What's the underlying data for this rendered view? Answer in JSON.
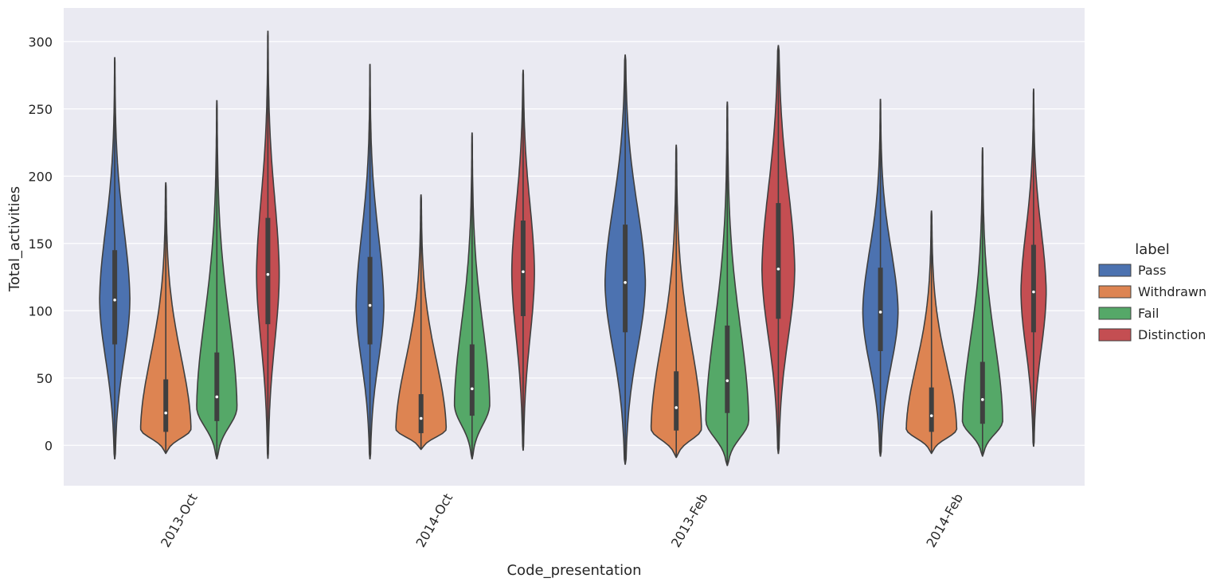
{
  "chart_data": {
    "type": "violin",
    "xlabel": "Code_presentation",
    "ylabel": "Total_activities",
    "ylim": [
      -30,
      325
    ],
    "yticks": [
      0,
      50,
      100,
      150,
      200,
      250,
      300
    ],
    "categories": [
      "2013-Oct",
      "2014-Oct",
      "2013-Feb",
      "2014-Feb"
    ],
    "legend": {
      "title": "label",
      "position": "right"
    },
    "colors": {
      "background": "#eaeaf2",
      "grid": "#ffffff",
      "outline": "#3f3f3f",
      "Pass": "#4c72b0",
      "Withdrawn": "#dd8452",
      "Fail": "#55a868",
      "Distinction": "#c44e52"
    },
    "series": [
      {
        "name": "Pass",
        "groups": [
          {
            "min": -10,
            "max": 288,
            "q1": 75,
            "median": 108,
            "q3": 145,
            "mode": 108,
            "width": 0.6
          },
          {
            "min": -10,
            "max": 283,
            "q1": 75,
            "median": 104,
            "q3": 140,
            "mode": 104,
            "width": 0.55
          },
          {
            "min": -14,
            "max": 290,
            "q1": 84,
            "median": 121,
            "q3": 164,
            "mode": 121,
            "width": 0.8
          },
          {
            "min": -8,
            "max": 257,
            "q1": 70,
            "median": 99,
            "q3": 132,
            "mode": 99,
            "width": 0.7
          }
        ]
      },
      {
        "name": "Withdrawn",
        "groups": [
          {
            "min": -6,
            "max": 195,
            "q1": 10,
            "median": 24,
            "q3": 49,
            "mode": 12,
            "width": 1.0
          },
          {
            "min": -3,
            "max": 186,
            "q1": 9,
            "median": 20,
            "q3": 38,
            "mode": 12,
            "width": 1.0
          },
          {
            "min": -9,
            "max": 223,
            "q1": 11,
            "median": 28,
            "q3": 55,
            "mode": 12,
            "width": 1.0
          },
          {
            "min": -6,
            "max": 174,
            "q1": 10,
            "median": 22,
            "q3": 43,
            "mode": 12,
            "width": 1.0
          }
        ]
      },
      {
        "name": "Fail",
        "groups": [
          {
            "min": -10,
            "max": 256,
            "q1": 18,
            "median": 36,
            "q3": 69,
            "mode": 28,
            "width": 0.8
          },
          {
            "min": -10,
            "max": 232,
            "q1": 22,
            "median": 42,
            "q3": 75,
            "mode": 30,
            "width": 0.7
          },
          {
            "min": -15,
            "max": 255,
            "q1": 24,
            "median": 48,
            "q3": 89,
            "mode": 18,
            "width": 0.85
          },
          {
            "min": -8,
            "max": 221,
            "q1": 16,
            "median": 34,
            "q3": 62,
            "mode": 18,
            "width": 0.8
          }
        ]
      },
      {
        "name": "Distinction",
        "groups": [
          {
            "min": -10,
            "max": 308,
            "q1": 90,
            "median": 127,
            "q3": 169,
            "mode": 127,
            "width": 0.45
          },
          {
            "min": -4,
            "max": 279,
            "q1": 96,
            "median": 129,
            "q3": 167,
            "mode": 129,
            "width": 0.45
          },
          {
            "min": -6,
            "max": 297,
            "q1": 94,
            "median": 131,
            "q3": 180,
            "mode": 131,
            "width": 0.65
          },
          {
            "min": -1,
            "max": 265,
            "q1": 84,
            "median": 114,
            "q3": 149,
            "mode": 114,
            "width": 0.5
          }
        ]
      }
    ]
  }
}
